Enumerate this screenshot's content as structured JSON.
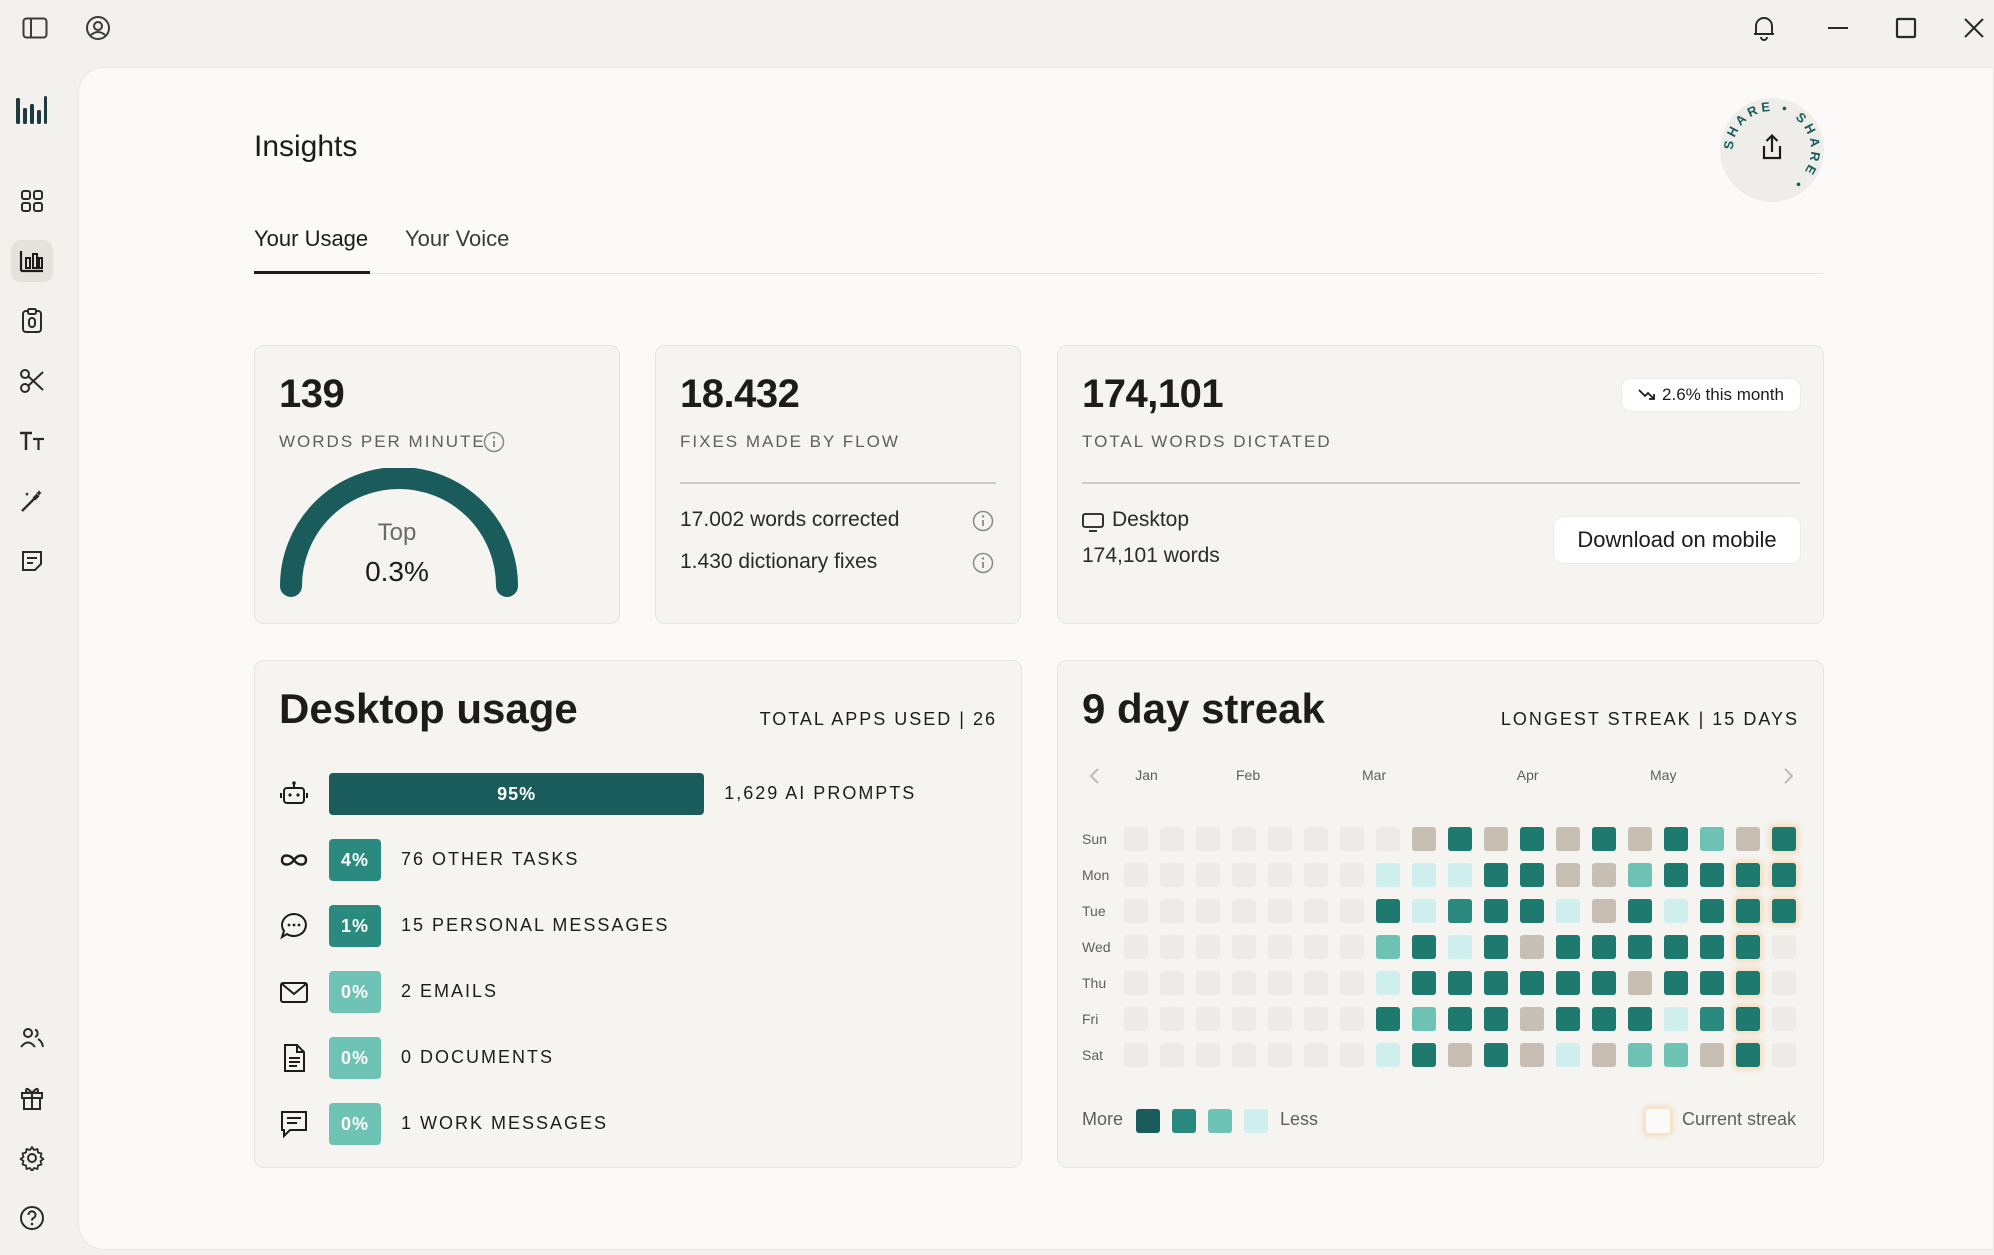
{
  "colors": {
    "brand_dark": "#1a5c5c",
    "mid_teal": "#2a8a80",
    "teal": "#1e7a6e",
    "light_teal": "#6ec3b4",
    "pale_teal": "#cfeeee",
    "beige": "#c8bfb4",
    "empty": "#ecebe7"
  },
  "titlebar": {
    "icons": [
      "sidebar-toggle-icon",
      "user-circle-icon",
      "bell-icon",
      "minimize-icon",
      "maximize-icon",
      "close-icon"
    ]
  },
  "sidebar": {
    "logo": "bar-chart-logo-icon",
    "items": [
      {
        "icon": "grid-icon",
        "active": false
      },
      {
        "icon": "insights-chart-icon",
        "active": true
      },
      {
        "icon": "clipboard-icon",
        "active": false
      },
      {
        "icon": "scissors-icon",
        "active": false
      },
      {
        "icon": "text-size-icon",
        "active": false
      },
      {
        "icon": "magic-wand-icon",
        "active": false
      },
      {
        "icon": "notes-icon",
        "active": false
      }
    ],
    "bottom_items": [
      {
        "icon": "users-icon"
      },
      {
        "icon": "gift-icon"
      },
      {
        "icon": "settings-icon"
      },
      {
        "icon": "help-icon"
      }
    ]
  },
  "page": {
    "title": "Insights",
    "tabs": [
      {
        "label": "Your Usage",
        "active": true
      },
      {
        "label": "Your Voice",
        "active": false
      }
    ],
    "share_label": "SHARE • SHARE •"
  },
  "wpm": {
    "value": "139",
    "caption": "WORDS PER MINUTE",
    "gauge_top": "Top",
    "gauge_value": "0.3%"
  },
  "fixes": {
    "value": "18.432",
    "caption": "FIXES MADE BY FLOW",
    "words_corrected": "17.002 words corrected",
    "dictionary_fixes": "1.430 dictionary fixes"
  },
  "total": {
    "value": "174,101",
    "caption": "TOTAL WORDS DICTATED",
    "trend": "2.6% this month",
    "device": "Desktop",
    "device_words": "174,101 words",
    "download_label": "Download on mobile"
  },
  "usage": {
    "title": "Desktop usage",
    "total_apps": "TOTAL APPS USED | 26",
    "rows": [
      {
        "icon": "robot-icon",
        "percent_label": "95%",
        "percent": 95,
        "label": "1,629 AI PROMPTS"
      },
      {
        "icon": "infinity-icon",
        "percent_label": "4%",
        "percent": 4,
        "label": "76 OTHER TASKS"
      },
      {
        "icon": "chat-bubble-icon",
        "percent_label": "1%",
        "percent": 1,
        "label": "15 PERSONAL MESSAGES"
      },
      {
        "icon": "mail-icon",
        "percent_label": "0%",
        "percent": 0,
        "label": "2 EMAILS"
      },
      {
        "icon": "document-icon",
        "percent_label": "0%",
        "percent": 0,
        "label": "0 DOCUMENTS"
      },
      {
        "icon": "message-square-icon",
        "percent_label": "0%",
        "percent": 0,
        "label": "1 WORK MESSAGES"
      }
    ]
  },
  "streak": {
    "title": "9 day streak",
    "longest": "LONGEST STREAK | 15 DAYS",
    "months": [
      "Jan",
      "Feb",
      "Mar",
      "Apr",
      "May"
    ],
    "days": [
      "Sun",
      "Mon",
      "Tue",
      "Wed",
      "Thu",
      "Fri",
      "Sat"
    ],
    "legend_more": "More",
    "legend_less": "Less",
    "legend_current": "Current streak",
    "grid": [
      [
        0,
        0,
        0,
        0,
        0,
        0,
        0,
        0,
        4,
        1,
        4,
        1,
        4,
        1,
        4,
        1,
        3,
        4,
        1
      ],
      [
        0,
        0,
        0,
        0,
        0,
        0,
        0,
        2,
        2,
        2,
        1,
        1,
        4,
        4,
        3,
        1,
        1,
        1,
        1
      ],
      [
        0,
        0,
        0,
        0,
        0,
        0,
        0,
        1,
        2,
        5,
        1,
        1,
        2,
        4,
        1,
        2,
        1,
        1,
        1
      ],
      [
        0,
        0,
        0,
        0,
        0,
        0,
        0,
        3,
        1,
        2,
        1,
        4,
        1,
        1,
        1,
        1,
        1,
        1,
        0
      ],
      [
        0,
        0,
        0,
        0,
        0,
        0,
        0,
        2,
        1,
        1,
        1,
        1,
        1,
        1,
        4,
        1,
        1,
        1,
        0
      ],
      [
        0,
        0,
        0,
        0,
        0,
        0,
        0,
        1,
        3,
        1,
        1,
        4,
        1,
        1,
        1,
        2,
        5,
        1,
        0
      ],
      [
        0,
        0,
        0,
        0,
        0,
        0,
        0,
        2,
        1,
        4,
        1,
        4,
        2,
        4,
        3,
        3,
        4,
        1,
        0
      ]
    ],
    "current_cells": [
      [
        0,
        18
      ],
      [
        1,
        17
      ],
      [
        1,
        18
      ],
      [
        2,
        17
      ],
      [
        2,
        18
      ],
      [
        3,
        17
      ],
      [
        4,
        17
      ],
      [
        5,
        17
      ],
      [
        6,
        17
      ]
    ]
  }
}
